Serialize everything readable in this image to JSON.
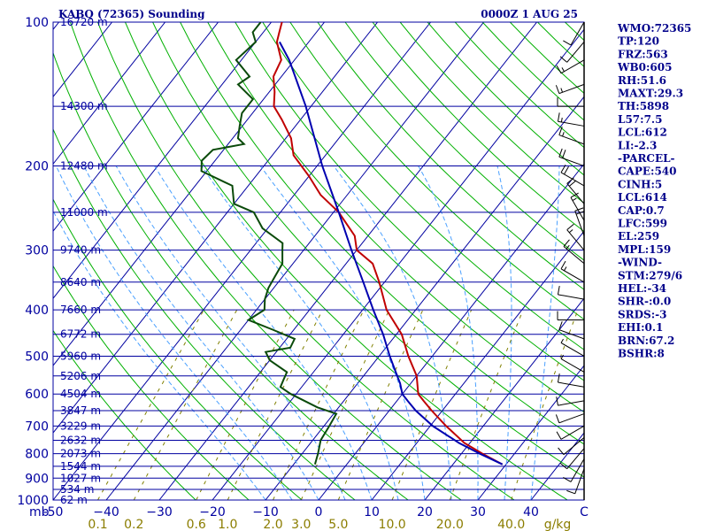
{
  "header": {
    "station": "KABQ (72365) Sounding",
    "time": "0000Z  1 AUG 25"
  },
  "chart_data": {
    "type": "line",
    "chart_kind": "skew-T log-P sounding",
    "pressure_unit_label": "mb",
    "mixing_ratio_unit_label": "g/kg",
    "x_axis": {
      "label": "temperature (C)",
      "range": [
        -50,
        50
      ]
    },
    "y_axis": {
      "label": "pressure (mb)",
      "scale": "log",
      "range": [
        1000,
        100
      ]
    },
    "pressure_ticks": [
      {
        "p": 100,
        "label": "100"
      },
      {
        "p": 200,
        "label": "200"
      },
      {
        "p": 300,
        "label": "300"
      },
      {
        "p": 400,
        "label": "400"
      },
      {
        "p": 500,
        "label": "500"
      },
      {
        "p": 600,
        "label": "600"
      },
      {
        "p": 700,
        "label": "700"
      },
      {
        "p": 800,
        "label": "800"
      },
      {
        "p": 900,
        "label": "900"
      },
      {
        "p": 1000,
        "label": "1000"
      }
    ],
    "temperature_ticks": [
      {
        "t": -50,
        "label": "-50"
      },
      {
        "t": -40,
        "label": "−40"
      },
      {
        "t": -30,
        "label": "−30"
      },
      {
        "t": -20,
        "label": "−20"
      },
      {
        "t": -10,
        "label": "−10"
      },
      {
        "t": 0,
        "label": "0"
      },
      {
        "t": 10,
        "label": "10"
      },
      {
        "t": 20,
        "label": "20"
      },
      {
        "t": 30,
        "label": "30"
      },
      {
        "t": 40,
        "label": "40"
      },
      {
        "t": 50,
        "label": "C"
      }
    ],
    "mixing_ratio_ticks": [
      {
        "w": 0.1,
        "label": "0.1"
      },
      {
        "w": 0.2,
        "label": "0.2"
      },
      {
        "w": 0.6,
        "label": "0.6"
      },
      {
        "w": 1.0,
        "label": "1.0"
      },
      {
        "w": 2.0,
        "label": "2.0"
      },
      {
        "w": 3.0,
        "label": "3.0"
      },
      {
        "w": 5.0,
        "label": "5.0"
      },
      {
        "w": 10.0,
        "label": "10.0"
      },
      {
        "w": 20.0,
        "label": "20.0"
      },
      {
        "w": 40.0,
        "label": "40.0"
      }
    ],
    "height_levels": [
      {
        "p": 100,
        "label": "16720 m"
      },
      {
        "p": 150,
        "label": "14300 m"
      },
      {
        "p": 200,
        "label": "12480 m"
      },
      {
        "p": 250,
        "label": "11000 m"
      },
      {
        "p": 300,
        "label": "9740 m"
      },
      {
        "p": 350,
        "label": "8640 m"
      },
      {
        "p": 400,
        "label": "7660 m"
      },
      {
        "p": 450,
        "label": "6772 m"
      },
      {
        "p": 500,
        "label": "5960 m"
      },
      {
        "p": 550,
        "label": "5206 m"
      },
      {
        "p": 600,
        "label": "4504 m"
      },
      {
        "p": 650,
        "label": "3847 m"
      },
      {
        "p": 700,
        "label": "3229 m"
      },
      {
        "p": 750,
        "label": "2632 m"
      },
      {
        "p": 800,
        "label": "2073 m"
      },
      {
        "p": 850,
        "label": "1544 m"
      },
      {
        "p": 900,
        "label": "1027 m"
      },
      {
        "p": 950,
        "label": "534 m"
      },
      {
        "p": 1000,
        "label": "62 m"
      }
    ],
    "series": [
      {
        "role": "temperature",
        "color": "#c00000",
        "points": [
          [
            842,
            29.3
          ],
          [
            800,
            24
          ],
          [
            760,
            19
          ],
          [
            700,
            13
          ],
          [
            650,
            8
          ],
          [
            620,
            5
          ],
          [
            600,
            3
          ],
          [
            550,
            0
          ],
          [
            500,
            -4.5
          ],
          [
            450,
            -9
          ],
          [
            400,
            -15.5
          ],
          [
            350,
            -21
          ],
          [
            320,
            -25
          ],
          [
            300,
            -30
          ],
          [
            280,
            -32.5
          ],
          [
            250,
            -39
          ],
          [
            230,
            -45
          ],
          [
            210,
            -50
          ],
          [
            190,
            -56
          ],
          [
            175,
            -59
          ],
          [
            160,
            -63.5
          ],
          [
            150,
            -67
          ],
          [
            140,
            -69
          ],
          [
            130,
            -71.5
          ],
          [
            120,
            -72.5
          ],
          [
            110,
            -76
          ],
          [
            105,
            -77
          ],
          [
            100,
            -78
          ]
        ]
      },
      {
        "role": "dewpoint",
        "color": "#0a4a0a",
        "points": [
          [
            842,
            -6
          ],
          [
            800,
            -7
          ],
          [
            750,
            -8.5
          ],
          [
            700,
            -9
          ],
          [
            660,
            -9.5
          ],
          [
            640,
            -14
          ],
          [
            600,
            -21
          ],
          [
            580,
            -24
          ],
          [
            560,
            -24.5
          ],
          [
            540,
            -25
          ],
          [
            510,
            -30
          ],
          [
            490,
            -32
          ],
          [
            480,
            -28
          ],
          [
            460,
            -28.5
          ],
          [
            440,
            -34
          ],
          [
            420,
            -40
          ],
          [
            400,
            -38.5
          ],
          [
            380,
            -40
          ],
          [
            360,
            -41
          ],
          [
            340,
            -41.5
          ],
          [
            320,
            -42
          ],
          [
            300,
            -44
          ],
          [
            290,
            -45
          ],
          [
            270,
            -51
          ],
          [
            250,
            -55
          ],
          [
            240,
            -60
          ],
          [
            220,
            -63
          ],
          [
            205,
            -71
          ],
          [
            195,
            -72.5
          ],
          [
            185,
            -72
          ],
          [
            180,
            -67
          ],
          [
            175,
            -69
          ],
          [
            165,
            -70.5
          ],
          [
            155,
            -72
          ],
          [
            145,
            -72
          ],
          [
            135,
            -77
          ],
          [
            130,
            -76
          ],
          [
            120,
            -81
          ],
          [
            110,
            -80
          ],
          [
            105,
            -82
          ],
          [
            100,
            -82
          ]
        ]
      },
      {
        "role": "parcel",
        "color": "#0000b0",
        "points": [
          [
            842,
            29.3
          ],
          [
            800,
            23.5
          ],
          [
            760,
            18
          ],
          [
            700,
            10.5
          ],
          [
            650,
            5
          ],
          [
            620,
            2
          ],
          [
            600,
            0
          ],
          [
            570,
            -2
          ],
          [
            540,
            -4.5
          ],
          [
            500,
            -8
          ],
          [
            450,
            -12.5
          ],
          [
            400,
            -18
          ],
          [
            350,
            -24
          ],
          [
            300,
            -31
          ],
          [
            250,
            -39
          ],
          [
            200,
            -49
          ],
          [
            150,
            -61
          ],
          [
            120,
            -71
          ],
          [
            110,
            -75.5
          ]
        ]
      }
    ],
    "wind_barbs": [
      {
        "p": 860,
        "dir": 200,
        "spd": 10
      },
      {
        "p": 820,
        "dir": 210,
        "spd": 10
      },
      {
        "p": 780,
        "dir": 220,
        "spd": 10
      },
      {
        "p": 740,
        "dir": 230,
        "spd": 10
      },
      {
        "p": 700,
        "dir": 240,
        "spd": 10
      },
      {
        "p": 660,
        "dir": 250,
        "spd": 10
      },
      {
        "p": 620,
        "dir": 260,
        "spd": 10
      },
      {
        "p": 580,
        "dir": 280,
        "spd": 10
      },
      {
        "p": 540,
        "dir": 300,
        "spd": 5
      },
      {
        "p": 500,
        "dir": 300,
        "spd": 5
      },
      {
        "p": 460,
        "dir": 290,
        "spd": 10
      },
      {
        "p": 420,
        "dir": 270,
        "spd": 10
      },
      {
        "p": 380,
        "dir": 280,
        "spd": 10
      },
      {
        "p": 350,
        "dir": 300,
        "spd": 15
      },
      {
        "p": 320,
        "dir": 310,
        "spd": 15
      },
      {
        "p": 300,
        "dir": 320,
        "spd": 15
      },
      {
        "p": 280,
        "dir": 340,
        "spd": 20
      },
      {
        "p": 260,
        "dir": 330,
        "spd": 15
      },
      {
        "p": 240,
        "dir": 320,
        "spd": 20
      },
      {
        "p": 220,
        "dir": 300,
        "spd": 20
      },
      {
        "p": 200,
        "dir": 290,
        "spd": 20
      },
      {
        "p": 180,
        "dir": 290,
        "spd": 15
      },
      {
        "p": 165,
        "dir": 280,
        "spd": 15
      },
      {
        "p": 150,
        "dir": 270,
        "spd": 10
      },
      {
        "p": 135,
        "dir": 250,
        "spd": 15
      },
      {
        "p": 120,
        "dir": 240,
        "spd": 15
      },
      {
        "p": 110,
        "dir": 220,
        "spd": 10
      },
      {
        "p": 100,
        "dir": 210,
        "spd": 10
      }
    ]
  },
  "indices": [
    "WMO:72365",
    "TP:120",
    "FRZ:563",
    "WB0:605",
    "RH:51.6",
    "MAXT:29.3",
    "TH:5898",
    "L57:7.5",
    "LCL:612",
    "LI:-2.3",
    "-PARCEL-",
    "CAPE:540",
    "CINH:5",
    "LCL:614",
    "CAP:0.7",
    "LFC:599",
    "EL:259",
    "MPL:159",
    "-WIND-",
    "STM:279/6",
    "HEL:-34",
    "SHR-:0.0",
    "SRDS:-3",
    "EHI:0.1",
    "BRN:67.2",
    "BSHR:8"
  ],
  "colors": {
    "isobar": "#0000a0",
    "isotherm": "#0000a0",
    "dry_adiabat": "#00b000",
    "moist_adiabat": "#4aa0ff",
    "mixing_ratio": "#808000",
    "temperature": "#c00000",
    "dewpoint": "#0a4a0a",
    "parcel": "#0000b0",
    "wind": "#000000",
    "text": "#00008b"
  }
}
